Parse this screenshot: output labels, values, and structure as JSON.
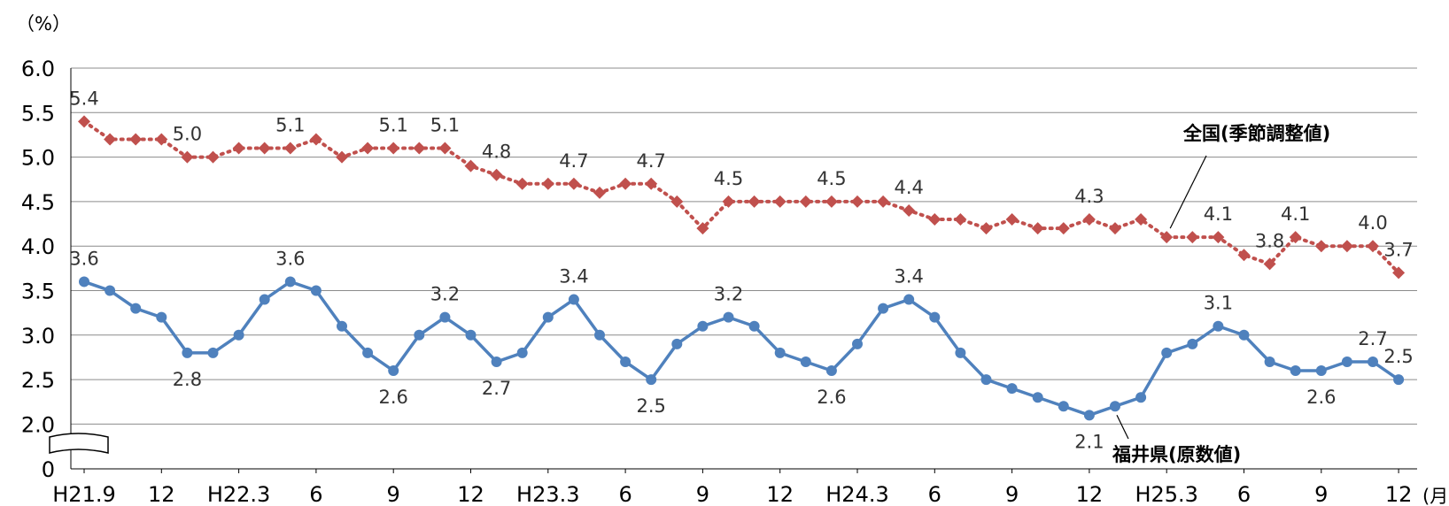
{
  "chart_data": {
    "type": "line",
    "y_unit_label": "（%）",
    "x_unit_label": "(月)",
    "ylim": [
      2.0,
      6.0
    ],
    "y_ticks": [
      "6.0",
      "5.5",
      "5.0",
      "4.5",
      "4.0",
      "3.5",
      "3.0",
      "2.5",
      "2.0",
      "0"
    ],
    "y_axis_break": true,
    "grid": true,
    "x_tick_labels": [
      {
        "index": 0,
        "label": "H21.9"
      },
      {
        "index": 3,
        "label": "12"
      },
      {
        "index": 6,
        "label": "H22.3"
      },
      {
        "index": 9,
        "label": "6"
      },
      {
        "index": 12,
        "label": "9"
      },
      {
        "index": 15,
        "label": "12"
      },
      {
        "index": 18,
        "label": "H23.3"
      },
      {
        "index": 21,
        "label": "6"
      },
      {
        "index": 24,
        "label": "9"
      },
      {
        "index": 27,
        "label": "12"
      },
      {
        "index": 30,
        "label": "H24.3"
      },
      {
        "index": 33,
        "label": "6"
      },
      {
        "index": 36,
        "label": "9"
      },
      {
        "index": 39,
        "label": "12"
      },
      {
        "index": 42,
        "label": "H25.3"
      },
      {
        "index": 45,
        "label": "6"
      },
      {
        "index": 48,
        "label": "9"
      },
      {
        "index": 51,
        "label": "12"
      }
    ],
    "series": [
      {
        "name": "全国(季節調整値)",
        "color": "#c0504d",
        "marker": "diamond",
        "line_style": "dotted",
        "values": [
          5.4,
          5.2,
          5.2,
          5.2,
          5.0,
          5.0,
          5.1,
          5.1,
          5.1,
          5.2,
          5.0,
          5.1,
          5.1,
          5.1,
          5.1,
          4.9,
          4.8,
          4.7,
          4.7,
          4.7,
          4.6,
          4.7,
          4.7,
          4.5,
          4.2,
          4.5,
          4.5,
          4.5,
          4.5,
          4.5,
          4.5,
          4.5,
          4.4,
          4.3,
          4.3,
          4.2,
          4.3,
          4.2,
          4.2,
          4.3,
          4.2,
          4.3,
          4.1,
          4.1,
          4.1,
          3.9,
          3.8,
          4.1,
          4.0,
          4.0,
          4.0,
          3.7
        ],
        "labels": [
          {
            "index": 0,
            "text": "5.4"
          },
          {
            "index": 4,
            "text": "5.0"
          },
          {
            "index": 8,
            "text": "5.1"
          },
          {
            "index": 12,
            "text": "5.1"
          },
          {
            "index": 14,
            "text": "5.1"
          },
          {
            "index": 16,
            "text": "4.8"
          },
          {
            "index": 19,
            "text": "4.7"
          },
          {
            "index": 22,
            "text": "4.7"
          },
          {
            "index": 25,
            "text": "4.5"
          },
          {
            "index": 29,
            "text": "4.5"
          },
          {
            "index": 32,
            "text": "4.4"
          },
          {
            "index": 39,
            "text": "4.3"
          },
          {
            "index": 44,
            "text": "4.1"
          },
          {
            "index": 46,
            "text": "3.8"
          },
          {
            "index": 47,
            "text": "4.1"
          },
          {
            "index": 50,
            "text": "4.0"
          },
          {
            "index": 51,
            "text": "3.7"
          }
        ]
      },
      {
        "name": "福井県(原数値)",
        "color": "#4f81bd",
        "marker": "circle",
        "line_style": "solid",
        "values": [
          3.6,
          3.5,
          3.3,
          3.2,
          2.8,
          2.8,
          3.0,
          3.4,
          3.6,
          3.5,
          3.1,
          2.8,
          2.6,
          3.0,
          3.2,
          3.0,
          2.7,
          2.8,
          3.2,
          3.4,
          3.0,
          2.7,
          2.5,
          2.9,
          3.1,
          3.2,
          3.1,
          2.8,
          2.7,
          2.6,
          2.9,
          3.3,
          3.4,
          3.2,
          2.8,
          2.5,
          2.4,
          2.3,
          2.2,
          2.1,
          2.2,
          2.3,
          2.8,
          2.9,
          3.1,
          3.0,
          2.7,
          2.6,
          2.6,
          2.7,
          2.7,
          2.5
        ],
        "labels": [
          {
            "index": 0,
            "text": "3.6"
          },
          {
            "index": 4,
            "text": "2.8"
          },
          {
            "index": 8,
            "text": "3.6"
          },
          {
            "index": 12,
            "text": "2.6"
          },
          {
            "index": 14,
            "text": "3.2"
          },
          {
            "index": 16,
            "text": "2.7"
          },
          {
            "index": 19,
            "text": "3.4"
          },
          {
            "index": 22,
            "text": "2.5"
          },
          {
            "index": 25,
            "text": "3.2"
          },
          {
            "index": 29,
            "text": "2.6"
          },
          {
            "index": 32,
            "text": "3.4"
          },
          {
            "index": 39,
            "text": "2.1"
          },
          {
            "index": 44,
            "text": "3.1"
          },
          {
            "index": 48,
            "text": "2.6"
          },
          {
            "index": 50,
            "text": "2.7"
          },
          {
            "index": 51,
            "text": "2.5"
          }
        ]
      }
    ]
  }
}
